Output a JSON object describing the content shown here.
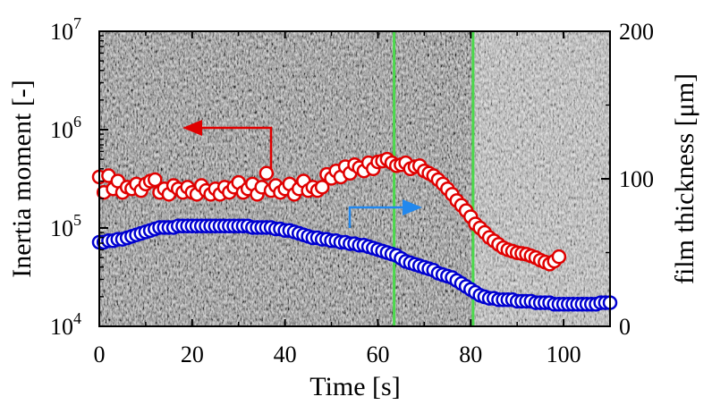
{
  "chart_data": {
    "type": "scatter",
    "title": "",
    "xlabel": "Time [s]",
    "ylabel_left": "Inertia moment [-]",
    "ylabel_right": "film thickness [μm]",
    "xlim": [
      0,
      110
    ],
    "ylim_left": [
      10000,
      10000000
    ],
    "ylim_right": [
      0,
      200
    ],
    "left_scale": "log",
    "x_ticks": [
      "0",
      "20",
      "40",
      "60",
      "80",
      "100"
    ],
    "left_tick_labels": [
      {
        "base": "10",
        "exp": "4"
      },
      {
        "base": "10",
        "exp": "5"
      },
      {
        "base": "10",
        "exp": "6"
      },
      {
        "base": "10",
        "exp": "7"
      }
    ],
    "right_ticks": [
      "0",
      "100",
      "200"
    ],
    "background": "grayscale video frame of liquid film (textured)",
    "vertical_lines": {
      "x": [
        63.5,
        80.5
      ],
      "color": "#4cd94c"
    },
    "series": [
      {
        "axis": "left",
        "marker": "open-circle",
        "color": "#e00000",
        "x": [
          0,
          1,
          2,
          3,
          4,
          5,
          6,
          7,
          8,
          9,
          10,
          11,
          12,
          13,
          14,
          15,
          16,
          17,
          18,
          19,
          20,
          21,
          22,
          23,
          24,
          25,
          26,
          27,
          28,
          29,
          30,
          31,
          32,
          33,
          34,
          35,
          36,
          37,
          38,
          39,
          40,
          41,
          42,
          43,
          44,
          45,
          46,
          47,
          48,
          49,
          50,
          51,
          52,
          53,
          54,
          55,
          56,
          57,
          58,
          59,
          60,
          61,
          62,
          63,
          64,
          65,
          66,
          67,
          68,
          69,
          70,
          71,
          72,
          73,
          74,
          75,
          76,
          77,
          78,
          79,
          80,
          81,
          82,
          83,
          84,
          85,
          86,
          87,
          88,
          89,
          90,
          91,
          92,
          93,
          94,
          95,
          96,
          97,
          98,
          99
        ],
        "values": [
          330000,
          230000,
          340000,
          250000,
          300000,
          230000,
          260000,
          250000,
          280000,
          240000,
          280000,
          300000,
          310000,
          230000,
          250000,
          220000,
          270000,
          250000,
          230000,
          260000,
          230000,
          220000,
          270000,
          240000,
          220000,
          250000,
          220000,
          260000,
          230000,
          260000,
          290000,
          230000,
          250000,
          280000,
          220000,
          260000,
          360000,
          240000,
          270000,
          230000,
          250000,
          280000,
          220000,
          250000,
          300000,
          240000,
          260000,
          240000,
          260000,
          350000,
          320000,
          380000,
          330000,
          420000,
          360000,
          440000,
          410000,
          380000,
          460000,
          400000,
          470000,
          480000,
          500000,
          460000,
          430000,
          440000,
          460000,
          400000,
          420000,
          430000,
          380000,
          360000,
          340000,
          310000,
          280000,
          250000,
          220000,
          190000,
          170000,
          150000,
          130000,
          110000,
          100000,
          90000,
          80000,
          74000,
          68000,
          63000,
          60000,
          58000,
          56000,
          55000,
          54000,
          52000,
          50000,
          47000,
          45000,
          43000,
          46000,
          51000
        ]
      },
      {
        "axis": "right",
        "marker": "open-circle",
        "color": "#0000d0",
        "x": [
          0,
          1,
          2,
          3,
          4,
          5,
          6,
          7,
          8,
          9,
          10,
          11,
          12,
          13,
          14,
          15,
          16,
          17,
          18,
          19,
          20,
          21,
          22,
          23,
          24,
          25,
          26,
          27,
          28,
          29,
          30,
          31,
          32,
          33,
          34,
          35,
          36,
          37,
          38,
          39,
          40,
          41,
          42,
          43,
          44,
          45,
          46,
          47,
          48,
          49,
          50,
          51,
          52,
          53,
          54,
          55,
          56,
          57,
          58,
          59,
          60,
          61,
          62,
          63,
          64,
          65,
          66,
          67,
          68,
          69,
          70,
          71,
          72,
          73,
          74,
          75,
          76,
          77,
          78,
          79,
          80,
          81,
          82,
          83,
          84,
          85,
          86,
          87,
          88,
          89,
          90,
          91,
          92,
          93,
          94,
          95,
          96,
          97,
          98,
          99,
          100,
          101,
          102,
          103,
          104,
          105,
          106,
          107,
          108,
          109,
          110
        ],
        "values": [
          57,
          57,
          58,
          58,
          59,
          59,
          60,
          61,
          62,
          63,
          64,
          65,
          66,
          67,
          67,
          67,
          67,
          68,
          68,
          68,
          68,
          68,
          68,
          68,
          68,
          68,
          68,
          68,
          68,
          68,
          68,
          68,
          68,
          67,
          67,
          67,
          67,
          67,
          66,
          66,
          65,
          65,
          64,
          63,
          62,
          61,
          60,
          60,
          59,
          59,
          58,
          58,
          57,
          57,
          56,
          56,
          55,
          55,
          54,
          53,
          52,
          51,
          50,
          49,
          48,
          46,
          44,
          43,
          42,
          41,
          40,
          39,
          38,
          36,
          35,
          34,
          33,
          31,
          29,
          27,
          25,
          23,
          21,
          20,
          19,
          19,
          18,
          18,
          18,
          18,
          17,
          17,
          17,
          17,
          16,
          16,
          16,
          16,
          15,
          15,
          15,
          15,
          15,
          15,
          15,
          15,
          15,
          15,
          16,
          16,
          16
        ]
      }
    ],
    "annotations": [
      {
        "type": "arrow",
        "points_to": "left axis",
        "color": "#e00000"
      },
      {
        "type": "arrow",
        "points_to": "right axis",
        "color": "#2288ee"
      }
    ]
  }
}
